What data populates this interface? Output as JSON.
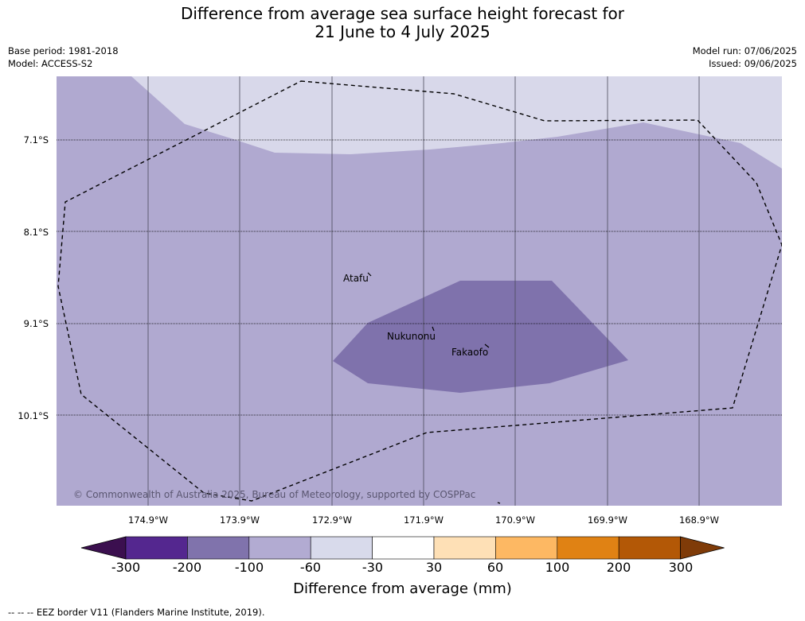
{
  "title_line1": "Difference from average sea surface height forecast for",
  "title_line2": "21 June to 4 July 2025",
  "meta_left": [
    "Base period: 1981-2018",
    "Model: ACCESS-S2"
  ],
  "meta_right": [
    "Model run: 07/06/2025",
    "Issued: 09/06/2025"
  ],
  "latitudes": [
    "7.1°S",
    "8.1°S",
    "9.1°S",
    "10.1°S"
  ],
  "longitudes": [
    "174.9°W",
    "173.9°W",
    "172.9°W",
    "171.9°W",
    "170.9°W",
    "169.9°W",
    "168.9°W"
  ],
  "islands": [
    "Atafu",
    "Nukunonu",
    "Fakaofo"
  ],
  "copyright": "© Commonwealth of Australia 2025, Bureau of Meteorology, supported by COSPPac",
  "colorbar": {
    "tick_labels": [
      "-300",
      "-200",
      "-100",
      "-60",
      "-30",
      "30",
      "60",
      "100",
      "200",
      "300"
    ],
    "colors": [
      "#3b0f4f",
      "#54278f",
      "#8073ac",
      "#b2abd2",
      "#d8daeb",
      "#ffffff",
      "#fee0b6",
      "#fdb863",
      "#e08214",
      "#b35806",
      "#7f3b08"
    ],
    "title": "Difference from average (mm)"
  },
  "legend_text": "--  --  -- EEZ border V11 (Flanders Marine Institute, 2019)."
}
